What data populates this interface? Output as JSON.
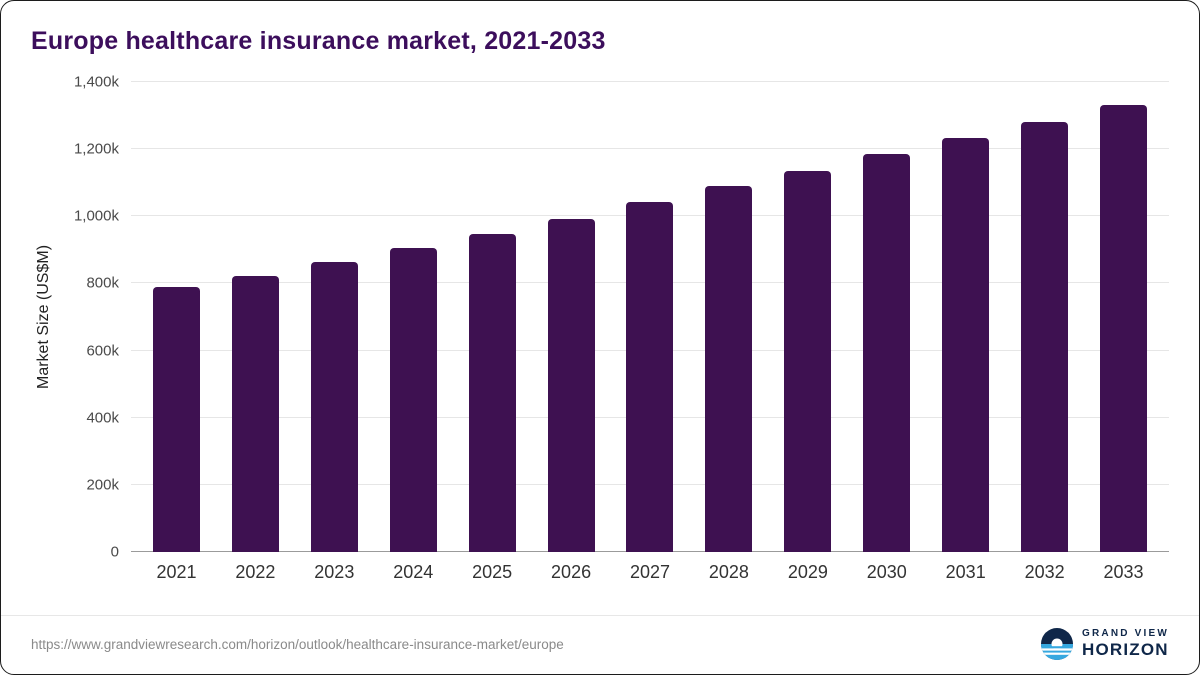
{
  "title": "Europe healthcare insurance market, 2021-2033",
  "chart_data": {
    "type": "bar",
    "title": "Europe healthcare insurance market, 2021-2033",
    "categories": [
      "2021",
      "2022",
      "2023",
      "2024",
      "2025",
      "2026",
      "2027",
      "2028",
      "2029",
      "2030",
      "2031",
      "2032",
      "2033"
    ],
    "values": [
      790,
      823,
      863,
      905,
      948,
      993,
      1043,
      1090,
      1136,
      1186,
      1232,
      1281,
      1333
    ],
    "value_unit": "k (thousands), axis in US$M",
    "xlabel": "",
    "ylabel": "Market Size (US$M)",
    "ylim": [
      0,
      1400
    ],
    "yticks": [
      {
        "value": 0,
        "label": "0"
      },
      {
        "value": 200,
        "label": "200k"
      },
      {
        "value": 400,
        "label": "400k"
      },
      {
        "value": 600,
        "label": "600k"
      },
      {
        "value": 800,
        "label": "800k"
      },
      {
        "value": 1000,
        "label": "1,000k"
      },
      {
        "value": 1200,
        "label": "1,200k"
      },
      {
        "value": 1400,
        "label": "1,400k"
      }
    ],
    "grid": "horizontal",
    "legend": "none"
  },
  "colors": {
    "bar": "#3E1151",
    "title": "#3C0E5C",
    "gridline": "#E6E6E6",
    "baseline": "#9B9B9B",
    "axis_text": "#4A4A4A",
    "logo_navy": "#0F2749",
    "logo_blue": "#35A8E0"
  },
  "footer": {
    "source_url": "https://www.grandviewresearch.com/horizon/outlook/healthcare-insurance-market/europe",
    "logo_top": "GRAND VIEW",
    "logo_bottom": "HORIZON"
  }
}
